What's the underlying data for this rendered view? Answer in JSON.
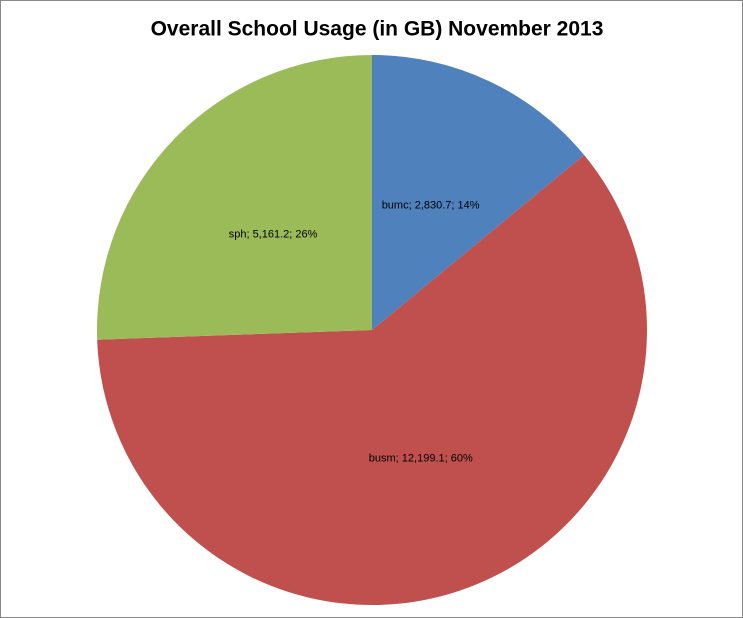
{
  "chart_data": {
    "type": "pie",
    "title": "Overall School Usage (in GB) November 2013",
    "values": [
      2830.7,
      12199.1,
      5161.2
    ],
    "value_labels": [
      "bumc; 2,830.7; 14%",
      "busm; 12,199.1; 60%",
      "sph; 5,161.2; 26%"
    ],
    "colors": [
      "#4f81bd",
      "#c0504d",
      "#9bbb59"
    ]
  }
}
